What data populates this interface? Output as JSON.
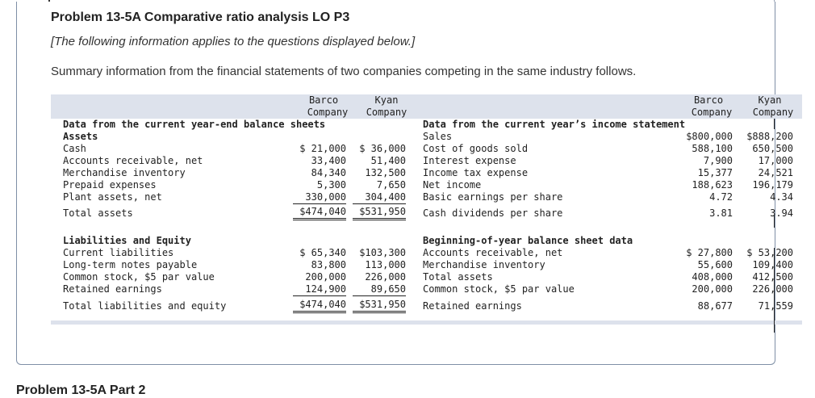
{
  "problem": {
    "title": "Problem 13-5A Comparative ratio analysis LO P3",
    "note": "[The following information applies to the questions displayed below.]",
    "intro": "Summary information from the financial statements of two companies competing in the same industry follows."
  },
  "columns": {
    "barco": "Barco",
    "kyan": "Kyan",
    "company": "Company"
  },
  "balance": {
    "heading": "Data from the current year-end balance sheets",
    "assets_label": "Assets",
    "assets": [
      {
        "label": "Cash",
        "barco": "$ 21,000",
        "kyan": "$ 36,000"
      },
      {
        "label": "Accounts receivable, net",
        "barco": "33,400",
        "kyan": "51,400"
      },
      {
        "label": "Merchandise inventory",
        "barco": "84,340",
        "kyan": "132,500"
      },
      {
        "label": "Prepaid expenses",
        "barco": "5,300",
        "kyan": "7,650"
      },
      {
        "label": "Plant assets, net",
        "barco": "330,000",
        "kyan": "304,400"
      }
    ],
    "total_assets": {
      "label": "Total assets",
      "barco": "$474,040",
      "kyan": "$531,950"
    },
    "liab_label": "Liabilities and Equity",
    "liabilities": [
      {
        "label": "Current liabilities",
        "barco": "$ 65,340",
        "kyan": "$103,300"
      },
      {
        "label": "Long-term notes payable",
        "barco": "83,800",
        "kyan": "113,000"
      },
      {
        "label": "Common stock, $5 par value",
        "barco": "200,000",
        "kyan": "226,000"
      },
      {
        "label": "Retained earnings",
        "barco": "124,900",
        "kyan": "89,650"
      }
    ],
    "total_liab": {
      "label": "Total liabilities and equity",
      "barco": "$474,040",
      "kyan": "$531,950"
    }
  },
  "income": {
    "heading": "Data from the current year’s income statement",
    "rows": [
      {
        "label": "Sales",
        "barco": "$800,000",
        "kyan": "$888,200"
      },
      {
        "label": "Cost of goods sold",
        "barco": "588,100",
        "kyan": "650,500"
      },
      {
        "label": "Interest expense",
        "barco": "7,900",
        "kyan": "17,000"
      },
      {
        "label": "Income tax expense",
        "barco": "15,377",
        "kyan": "24,521"
      },
      {
        "label": "Net income",
        "barco": "188,623",
        "kyan": "196,179"
      },
      {
        "label": "Basic earnings per share",
        "barco": "4.72",
        "kyan": "4.34"
      },
      {
        "label": "Cash dividends per share",
        "barco": "3.81",
        "kyan": "3.94"
      }
    ]
  },
  "beginning": {
    "heading": "Beginning-of-year balance sheet data",
    "rows": [
      {
        "label": "Accounts receivable, net",
        "barco": "$ 27,800",
        "kyan": "$ 53,200"
      },
      {
        "label": "Merchandise inventory",
        "barco": "55,600",
        "kyan": "109,400"
      },
      {
        "label": "Total assets",
        "barco": "408,000",
        "kyan": "412,500"
      },
      {
        "label": "Common stock, $5 par value",
        "barco": "200,000",
        "kyan": "226,000"
      },
      {
        "label": "Retained earnings",
        "barco": "88,677",
        "kyan": "71,559"
      }
    ]
  },
  "next_part": "Problem 13-5A Part 2"
}
